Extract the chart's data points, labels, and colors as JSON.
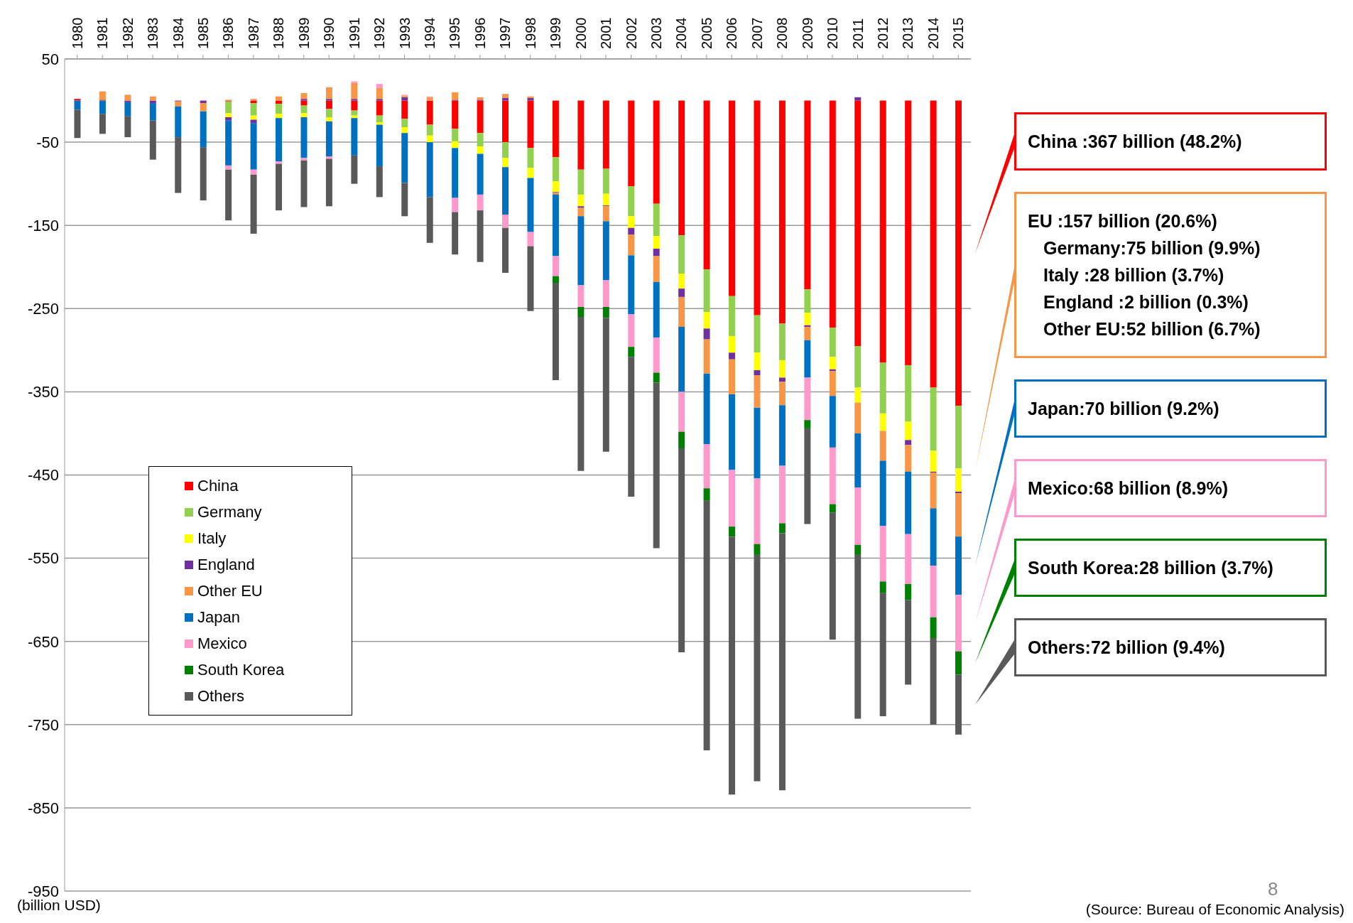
{
  "chart_data": {
    "type": "bar",
    "stacked": true,
    "ylabel": null,
    "categories": [
      "1980",
      "1981",
      "1982",
      "1983",
      "1984",
      "1985",
      "1986",
      "1987",
      "1988",
      "1989",
      "1990",
      "1991",
      "1992",
      "1993",
      "1994",
      "1995",
      "1996",
      "1997",
      "1998",
      "1999",
      "2000",
      "2001",
      "2002",
      "2003",
      "2004",
      "2005",
      "2006",
      "2007",
      "2008",
      "2009",
      "2010",
      "2011",
      "2012",
      "2013",
      "2014",
      "2015"
    ],
    "series": [
      {
        "name": "China",
        "color": "#ff0000",
        "values": [
          2,
          1,
          null,
          null,
          null,
          null,
          -1,
          -3,
          -4,
          -6,
          -10,
          -12,
          -18,
          -22,
          -29,
          -34,
          -39,
          -50,
          -57,
          -68,
          -83,
          -82,
          -103,
          -124,
          -162,
          -203,
          -235,
          -258,
          -268,
          -227,
          -273,
          -295,
          -315,
          -318,
          -345,
          -367
        ]
      },
      {
        "name": "Germany",
        "color": "#92d050",
        "values": [
          null,
          null,
          null,
          null,
          null,
          null,
          -14,
          -15,
          -12,
          -9,
          -10,
          -6,
          -8,
          -10,
          -13,
          -15,
          -16,
          -19,
          -24,
          -29,
          -30,
          -30,
          -36,
          -39,
          -46,
          -51,
          -48,
          -45,
          -44,
          -28,
          -35,
          -50,
          -61,
          -68,
          -76,
          -75
        ]
      },
      {
        "name": "Italy",
        "color": "#ffff00",
        "values": [
          null,
          null,
          null,
          null,
          null,
          null,
          -5,
          -5,
          -5,
          -5,
          -5,
          -3,
          -3,
          -7,
          -8,
          -8,
          -9,
          -11,
          -12,
          -13,
          -14,
          -14,
          -14,
          -15,
          -18,
          -20,
          -20,
          -21,
          -21,
          -15,
          -15,
          -18,
          -21,
          -22,
          -25,
          -28
        ]
      },
      {
        "name": "England",
        "color": "#7030a0",
        "values": [
          null,
          null,
          -2,
          -3,
          -1,
          -3,
          -4,
          -4,
          null,
          2,
          2,
          2,
          2,
          4,
          null,
          1,
          1,
          3,
          3,
          -1,
          -2,
          -1,
          -8,
          -9,
          -10,
          -13,
          -8,
          -6,
          -5,
          -2,
          -2,
          4,
          null,
          -6,
          -1,
          -2
        ]
      },
      {
        "name": "Other EU",
        "color": "#f79646",
        "values": [
          null,
          10,
          7,
          5,
          -6,
          -10,
          1,
          2,
          5,
          7,
          14,
          19,
          13,
          2,
          4,
          9,
          3,
          5,
          2,
          -2,
          -10,
          -18,
          -25,
          -31,
          -36,
          -41,
          -42,
          -39,
          -28,
          -16,
          -30,
          -37,
          -36,
          -32,
          -43,
          -52
        ]
      },
      {
        "name": "Japan",
        "color": "#0070c0",
        "values": [
          -11,
          -16,
          -17,
          -21,
          -37,
          -43,
          -54,
          -56,
          -52,
          -49,
          -42,
          -45,
          -50,
          -60,
          -66,
          -60,
          -49,
          -57,
          -65,
          -74,
          -83,
          -71,
          -71,
          -67,
          -78,
          -85,
          -91,
          -85,
          -73,
          -45,
          -62,
          -65,
          -78,
          -75,
          -69,
          -70
        ]
      },
      {
        "name": "Mexico",
        "color": "#ff99cc",
        "values": [
          null,
          null,
          null,
          null,
          null,
          null,
          -5,
          -6,
          -3,
          -3,
          -3,
          2,
          5,
          1,
          1,
          -17,
          -19,
          -16,
          -17,
          -24,
          -26,
          -32,
          -39,
          -42,
          -48,
          -53,
          -68,
          -79,
          -69,
          -51,
          -68,
          -69,
          -67,
          -60,
          -62,
          -68
        ]
      },
      {
        "name": "South Korea",
        "color": "#008000",
        "values": [
          null,
          null,
          null,
          null,
          null,
          null,
          null,
          null,
          null,
          null,
          null,
          null,
          null,
          null,
          null,
          null,
          null,
          null,
          null,
          -8,
          -12,
          -13,
          -12,
          -12,
          -20,
          -15,
          -12,
          -13,
          -12,
          -10,
          -10,
          -12,
          -14,
          -19,
          -25,
          -28
        ]
      },
      {
        "name": "Others",
        "color": "#595959",
        "values": [
          -34,
          -24,
          -25,
          -47,
          -67,
          -64,
          -61,
          -71,
          -56,
          -56,
          -57,
          -34,
          -37,
          -40,
          -55,
          -51,
          -62,
          -54,
          -78,
          -117,
          -185,
          -161,
          -168,
          -199,
          -245,
          -300,
          -310,
          -272,
          -309,
          -115,
          -153,
          -197,
          -148,
          -102,
          -104,
          -72
        ]
      }
    ],
    "ylim": [
      -950,
      50
    ],
    "yticks": [
      50,
      -50,
      -150,
      -250,
      -350,
      -450,
      -550,
      -650,
      -750,
      -850,
      -950
    ],
    "grid": "y",
    "legend": "left",
    "annotations": [
      "(billion USD)",
      "8",
      "(Source: Bureau of Economic Analysis)",
      "China :367 billion (48.2%)",
      "EU :157 billion (20.6%)",
      "Germany:75 billion (9.9%)",
      "Italy :28 billion (3.7%)",
      "England :2 billion (0.3%)",
      "Other EU:52 billion (6.7%)",
      "Japan:70 billion (9.2%)",
      "Mexico:68 billion (8.9%)",
      "South Korea:28 billion (3.7%)",
      "Others:72 billion (9.4%)"
    ]
  }
}
